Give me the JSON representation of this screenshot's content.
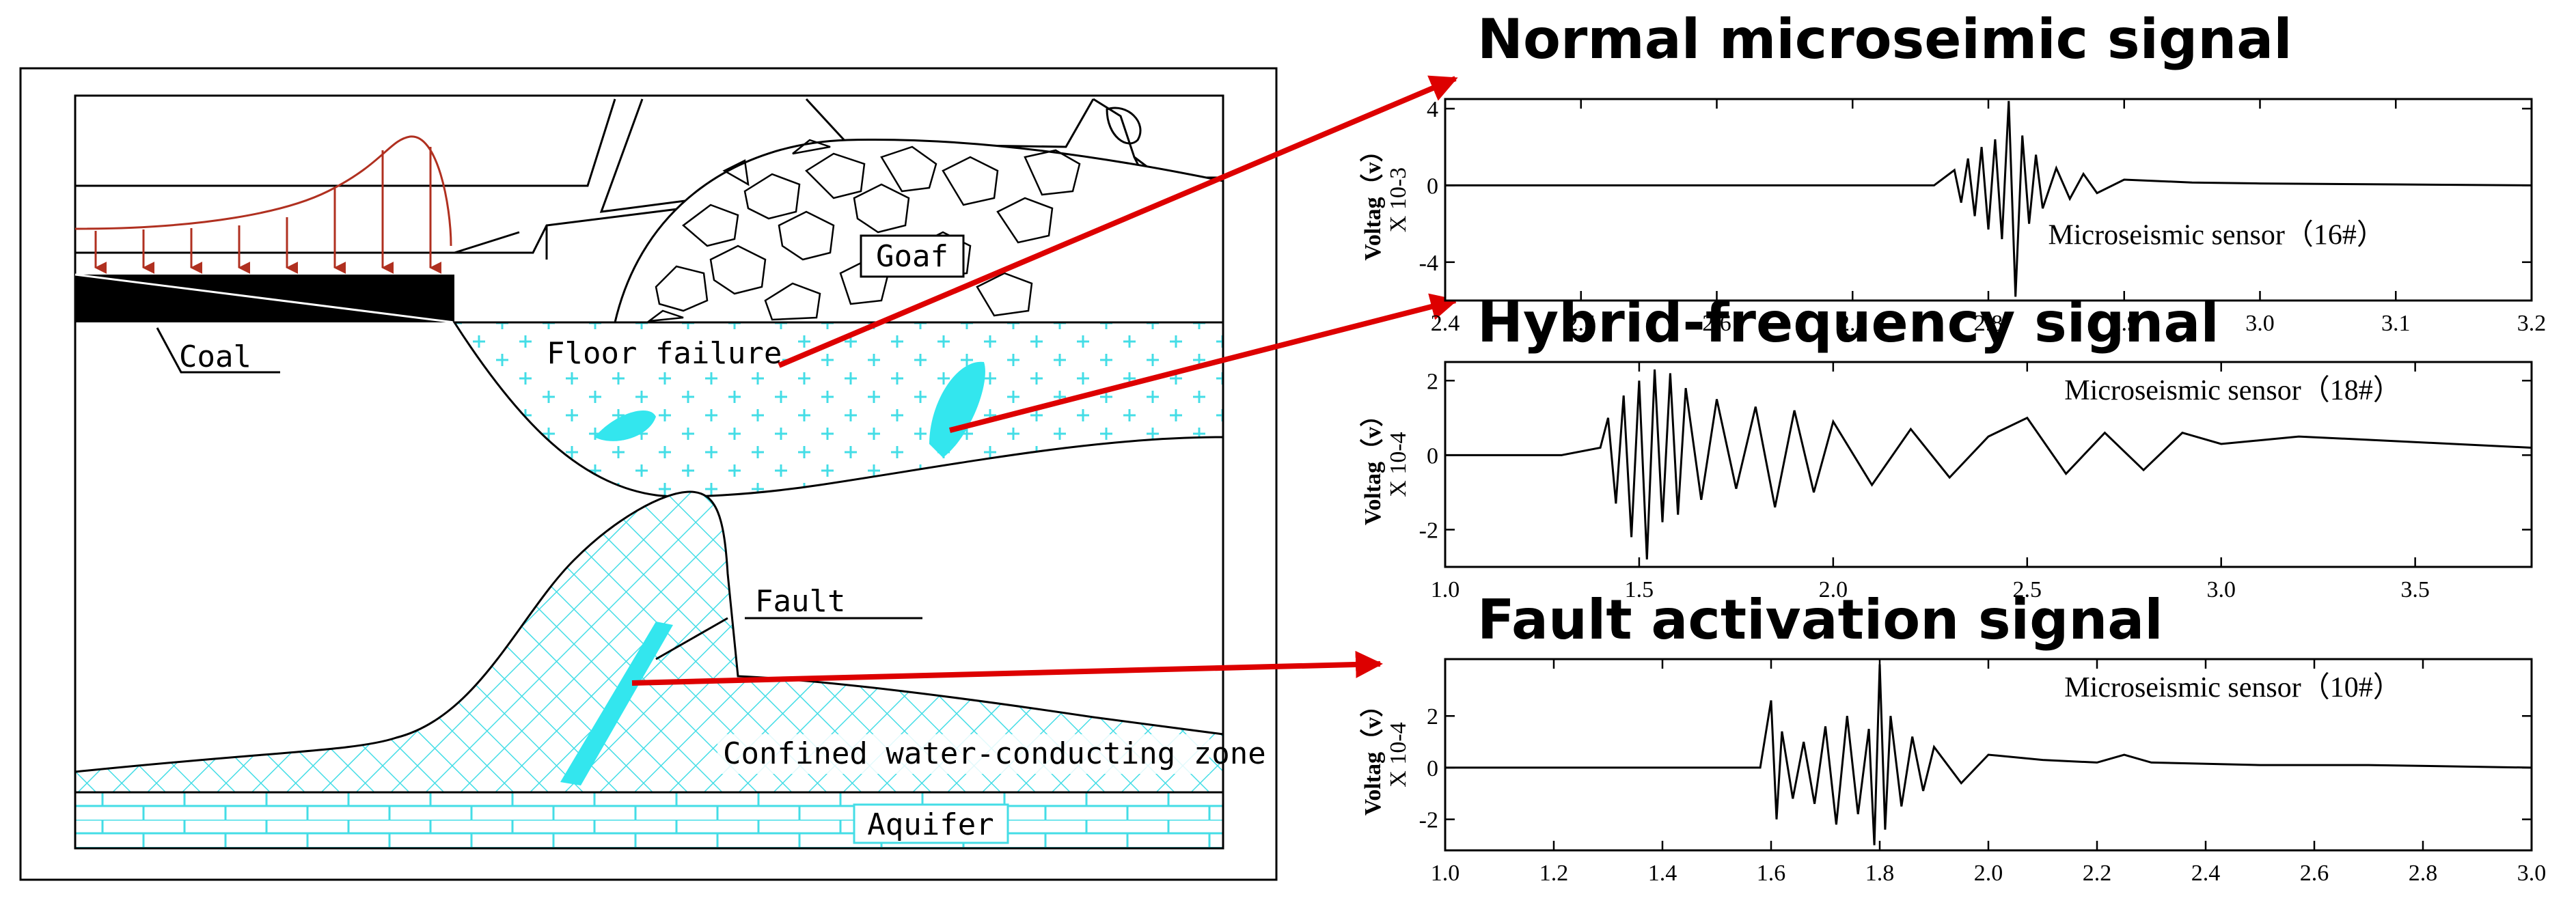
{
  "diagram": {
    "labels": {
      "coal": "Coal",
      "goaf": "Goaf",
      "floor_failure": "Floor failure",
      "fault": "Fault",
      "confined_zone": "Confined water-conducting zone",
      "aquifer": "Aquifer"
    },
    "colors": {
      "cyan": "#33e6ee",
      "hatch": "#44dde6",
      "arrow": "#dd0000",
      "stress": "#b03020"
    }
  },
  "chart_data": [
    {
      "type": "line",
      "title": "Normal microseimic signal",
      "ylabel": "Voltag（v）",
      "yscale_label": "X 10-3",
      "legend": "Microseismic sensor（16#）",
      "xlim": [
        2.4,
        3.2
      ],
      "ylim": [
        -6,
        4.5
      ],
      "xticks": [
        "2.4",
        "2.5",
        "2.6",
        "2.7",
        "2.8",
        "2.9",
        "3.0",
        "3.1",
        "3.2"
      ],
      "yticks": [
        "4",
        "0",
        "-4"
      ],
      "ytick_values": [
        4,
        0,
        -4
      ],
      "x": [
        2.4,
        2.5,
        2.6,
        2.7,
        2.76,
        2.775,
        2.78,
        2.785,
        2.79,
        2.795,
        2.8,
        2.805,
        2.81,
        2.815,
        2.82,
        2.825,
        2.83,
        2.835,
        2.84,
        2.85,
        2.86,
        2.87,
        2.88,
        2.9,
        2.95,
        3.0,
        3.1,
        3.2
      ],
      "y": [
        0,
        0,
        0,
        0,
        0,
        0.8,
        -0.9,
        1.4,
        -1.6,
        2.0,
        -2.3,
        2.4,
        -2.8,
        4.4,
        -5.8,
        2.6,
        -2.0,
        1.6,
        -1.2,
        0.9,
        -0.7,
        0.6,
        -0.4,
        0.3,
        0.15,
        0.1,
        0.05,
        0
      ]
    },
    {
      "type": "line",
      "title": "Hybrid-frequency signal",
      "ylabel": "Voltag（v）",
      "yscale_label": "X 10-4",
      "legend": "Microseismic sensor（18#）",
      "xlim": [
        1.0,
        3.8
      ],
      "ylim": [
        -3,
        2.5
      ],
      "xticks": [
        "1.0",
        "1.5",
        "2.0",
        "2.5",
        "3.0",
        "3.5"
      ],
      "xtick_values": [
        1.0,
        1.5,
        2.0,
        2.5,
        3.0,
        3.5
      ],
      "yticks": [
        "2",
        "0",
        "-2"
      ],
      "ytick_values": [
        2,
        0,
        -2
      ],
      "x": [
        1.0,
        1.3,
        1.4,
        1.42,
        1.44,
        1.46,
        1.48,
        1.5,
        1.52,
        1.54,
        1.56,
        1.58,
        1.6,
        1.62,
        1.66,
        1.7,
        1.75,
        1.8,
        1.85,
        1.9,
        1.95,
        2.0,
        2.1,
        2.2,
        2.3,
        2.4,
        2.5,
        2.6,
        2.7,
        2.8,
        2.9,
        3.0,
        3.2,
        3.4,
        3.6,
        3.8
      ],
      "y": [
        0,
        0,
        0.2,
        1.0,
        -1.3,
        1.6,
        -2.2,
        2.0,
        -2.8,
        2.3,
        -1.8,
        2.2,
        -1.6,
        1.8,
        -1.2,
        1.5,
        -0.9,
        1.3,
        -1.4,
        1.2,
        -1.0,
        0.9,
        -0.8,
        0.7,
        -0.6,
        0.5,
        1.0,
        -0.5,
        0.6,
        -0.4,
        0.6,
        0.3,
        0.5,
        0.4,
        0.3,
        0.2
      ]
    },
    {
      "type": "line",
      "title": "Fault activation signal",
      "ylabel": "Voltag（v）",
      "yscale_label": "X 10-4",
      "legend": "Microseismic sensor（10#）",
      "xlim": [
        1.0,
        3.0
      ],
      "ylim": [
        -3.2,
        4.2
      ],
      "xticks": [
        "1.0",
        "1.2",
        "1.4",
        "1.6",
        "1.8",
        "2.0",
        "2.2",
        "2.4",
        "2.6",
        "2.8",
        "3.0"
      ],
      "xtick_values": [
        1.0,
        1.2,
        1.4,
        1.6,
        1.8,
        2.0,
        2.2,
        2.4,
        2.6,
        2.8,
        3.0
      ],
      "yticks": [
        "2",
        "0",
        "-2"
      ],
      "ytick_values": [
        2,
        0,
        -2
      ],
      "x": [
        1.0,
        1.2,
        1.4,
        1.58,
        1.6,
        1.61,
        1.62,
        1.64,
        1.66,
        1.68,
        1.7,
        1.72,
        1.74,
        1.76,
        1.78,
        1.79,
        1.8,
        1.81,
        1.82,
        1.84,
        1.86,
        1.88,
        1.9,
        1.95,
        2.0,
        2.1,
        2.2,
        2.25,
        2.3,
        2.5,
        2.7,
        3.0
      ],
      "y": [
        0,
        0,
        0,
        0,
        2.6,
        -2.0,
        1.4,
        -1.2,
        1.0,
        -1.4,
        1.6,
        -2.2,
        2.0,
        -1.8,
        1.5,
        -3.0,
        4.0,
        -2.4,
        2.0,
        -1.5,
        1.2,
        -0.9,
        0.8,
        -0.6,
        0.5,
        0.3,
        0.2,
        0.5,
        0.2,
        0.1,
        0.1,
        0
      ]
    }
  ]
}
